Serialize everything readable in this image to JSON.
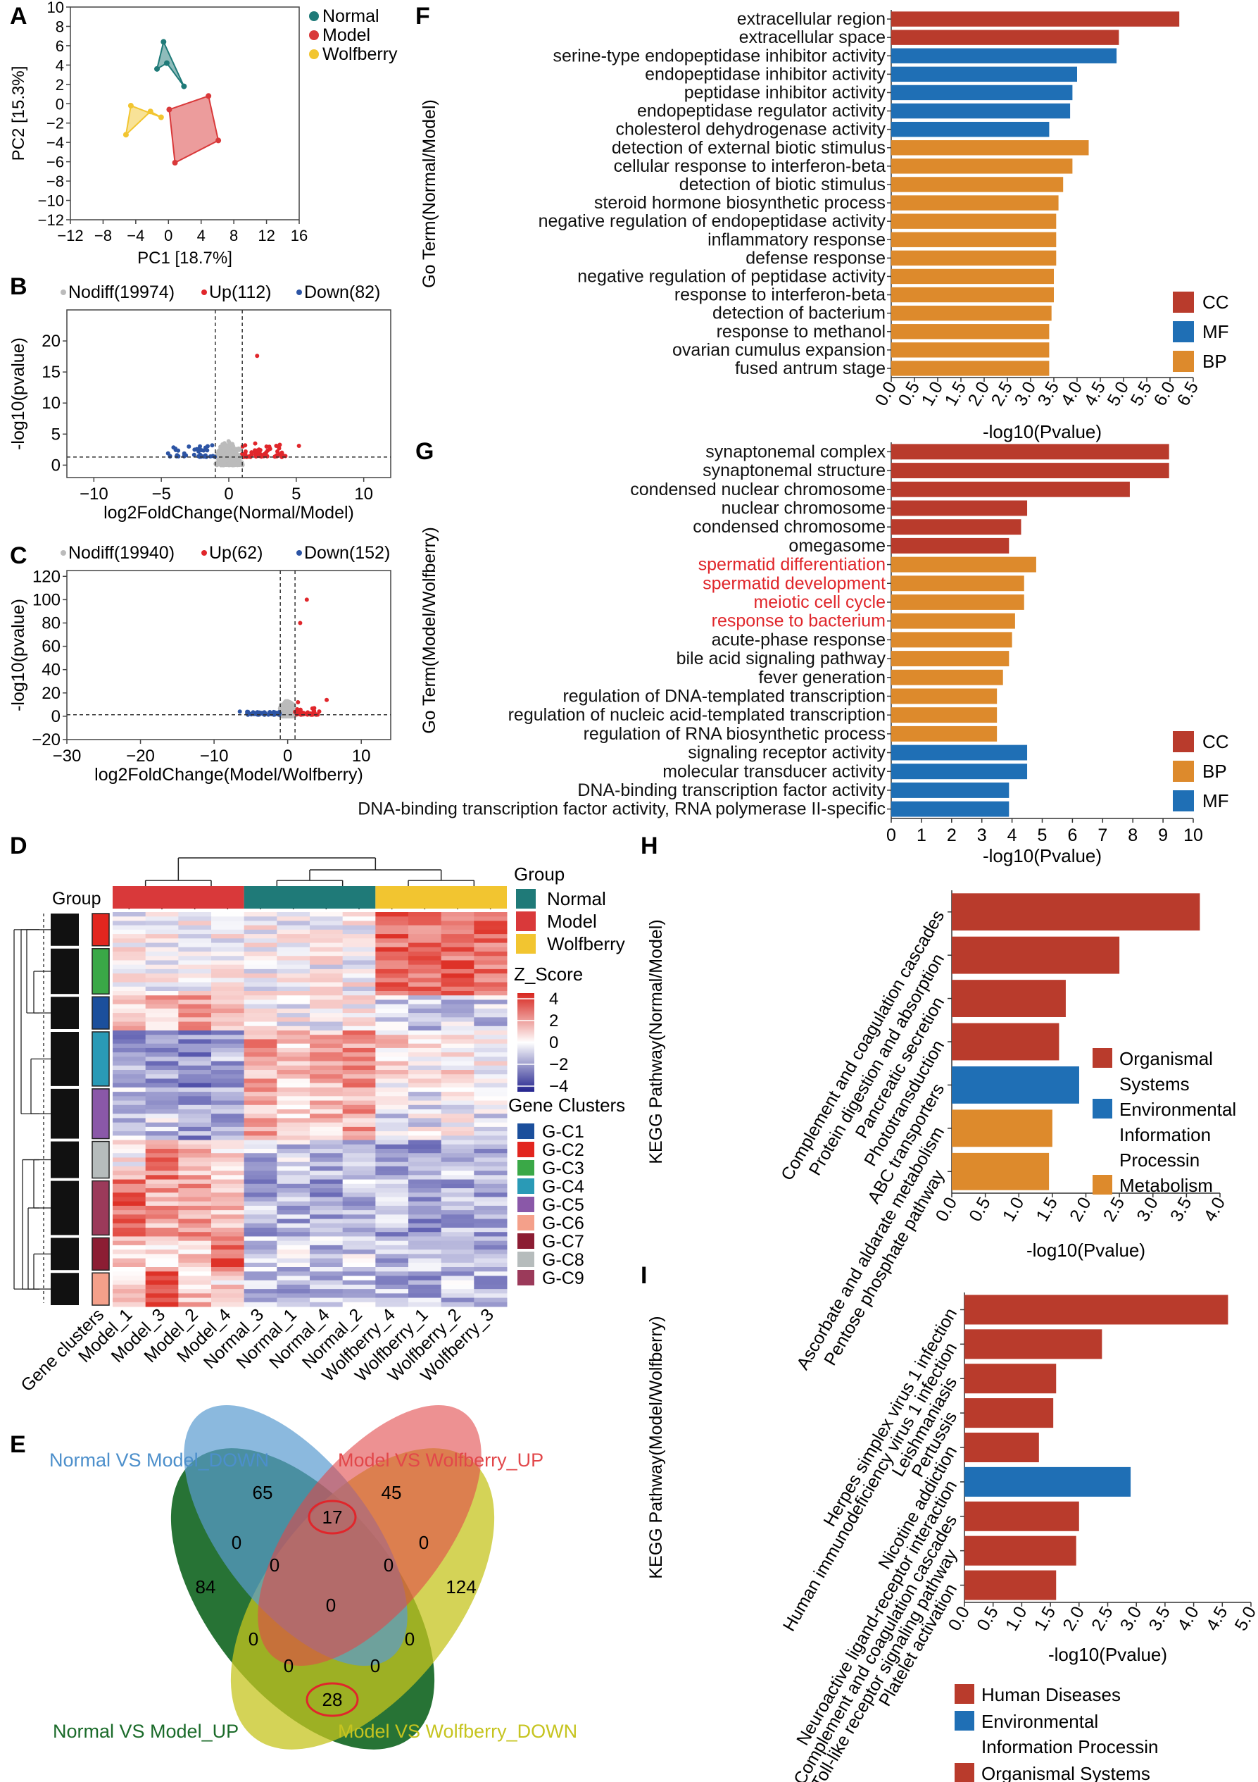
{
  "panel_labels": {
    "A": "A",
    "B": "B",
    "C": "C",
    "D": "D",
    "E": "E",
    "F": "F",
    "G": "G",
    "H": "H",
    "I": "I"
  },
  "colors": {
    "normal": "#1f7a78",
    "model": "#d9393a",
    "wolfberry": "#f2c530",
    "cc": "#b93b2c",
    "mf": "#1f6fb5",
    "bp": "#dd8a2c",
    "up": "#e0262b",
    "down": "#2c54a4",
    "nodiff": "#bbbbbb",
    "red_text": "#e0262b"
  },
  "chart_data": [
    {
      "id": "A",
      "type": "scatter",
      "xlabel": "PC1 [18.7%]",
      "ylabel": "PC2 [15.3%]",
      "xlim": [
        -12,
        16
      ],
      "ylim": [
        -12,
        10
      ],
      "xticks": [
        "−12",
        "−8",
        "−4",
        "0",
        "4",
        "8",
        "12",
        "16"
      ],
      "xtick_values": [
        -12,
        -8,
        -4,
        0,
        4,
        8,
        12,
        16
      ],
      "yticks": [
        "10",
        "8",
        "6",
        "4",
        "2",
        "0",
        "−2",
        "−4",
        "−6",
        "−8",
        "−10",
        "−12"
      ],
      "ytick_values": [
        10,
        8,
        6,
        4,
        2,
        0,
        -2,
        -4,
        -6,
        -8,
        -10,
        -12
      ],
      "legend": [
        "Normal",
        "Model",
        "Wolfberry"
      ],
      "series": [
        {
          "name": "Normal",
          "color": "#1f7a78",
          "points": [
            [
              -0.6,
              6.4
            ],
            [
              -1.4,
              3.6
            ],
            [
              -0.2,
              4.2
            ],
            [
              1.9,
              1.8
            ]
          ]
        },
        {
          "name": "Model",
          "color": "#d9393a",
          "points": [
            [
              0.1,
              -0.6
            ],
            [
              4.9,
              0.8
            ],
            [
              6.1,
              -3.8
            ],
            [
              0.8,
              -6.1
            ]
          ]
        },
        {
          "name": "Wolfberry",
          "color": "#f2c530",
          "points": [
            [
              -4.6,
              -0.2
            ],
            [
              -5.2,
              -3.2
            ],
            [
              -2.2,
              -0.8
            ],
            [
              -0.9,
              -1.4
            ]
          ]
        }
      ]
    },
    {
      "id": "B",
      "type": "scatter",
      "xlabel": "log2FoldChange(Normal/Model)",
      "ylabel": "-log10(pvalue)",
      "xlim": [
        -12,
        12
      ],
      "ylim": [
        -2,
        25
      ],
      "xticks": [
        "−10",
        "−5",
        "0",
        "5",
        "10"
      ],
      "xtick_values": [
        -10,
        -5,
        0,
        5,
        10
      ],
      "yticks": [
        "20",
        "15",
        "10",
        "5",
        "0"
      ],
      "ytick_values": [
        20,
        15,
        10,
        5,
        0
      ],
      "legend": [
        "Nodiff(19974)",
        "Up(112)",
        "Down(82)"
      ],
      "vlines": [
        -1,
        1
      ],
      "hline": 1.3,
      "highlights": [
        [
          2.1,
          17.6
        ],
        [
          5.2,
          3.1
        ],
        [
          3.6,
          2.2
        ],
        [
          -4.5,
          1.9
        ]
      ]
    },
    {
      "id": "C",
      "type": "scatter",
      "xlabel": "log2FoldChange(Model/Wolfberry)",
      "ylabel": "-log10(pvalue)",
      "xlim": [
        -30,
        14
      ],
      "ylim": [
        -20,
        125
      ],
      "xticks": [
        "−30",
        "−20",
        "−10",
        "0",
        "10"
      ],
      "xtick_values": [
        -30,
        -20,
        -10,
        0,
        10
      ],
      "yticks": [
        "120",
        "100",
        "80",
        "60",
        "40",
        "20",
        "0",
        "−20"
      ],
      "ytick_values": [
        120,
        100,
        80,
        60,
        40,
        20,
        0,
        -20
      ],
      "legend": [
        "Nodiff(19940)",
        "Up(62)",
        "Down(152)"
      ],
      "vlines": [
        -1,
        1
      ],
      "hline": 1.3,
      "highlights": [
        [
          2.6,
          100
        ],
        [
          1.7,
          80
        ],
        [
          5.3,
          14
        ],
        [
          1.4,
          12
        ],
        [
          -6.5,
          4
        ]
      ]
    },
    {
      "id": "D",
      "type": "heatmap",
      "legend_group_title": "Group",
      "legend_groups": [
        "Normal",
        "Model",
        "Wolfberry"
      ],
      "zscore_title": "Z_Score",
      "zscore_ticks": [
        "4",
        "2",
        "0",
        "−2",
        "−4"
      ],
      "clusters_title": "Gene Clusters",
      "clusters": [
        "G-C1",
        "G-C2",
        "G-C3",
        "G-C4",
        "G-C5",
        "G-C6",
        "G-C7",
        "G-C8",
        "G-C9"
      ],
      "group_label": "Group",
      "columns": [
        "Gene clusters",
        "Model_1",
        "Model_3",
        "Model_2",
        "Model_4",
        "Normal_3",
        "Normal_1",
        "Normal_4",
        "Normal_2",
        "Wolfberry_4",
        "Wolfberry_1",
        "Wolfberry_2",
        "Wolfberry_3"
      ]
    },
    {
      "id": "E",
      "type": "venn",
      "sets": [
        "Normal VS Model_DOWN",
        "Model VS Wolfberry_UP",
        "Normal VS Model_UP",
        "Model VS Wolfberry_DOWN"
      ],
      "counts": [
        "65",
        "45",
        "84",
        "124",
        "17",
        "0",
        "0",
        "0",
        "0",
        "0",
        "0",
        "0",
        "0",
        "0",
        "28"
      ]
    },
    {
      "id": "F",
      "type": "bar",
      "ylabel": "Go Term(Normal/Model)",
      "xlabel": "-log10(Pvalue)",
      "xlim": [
        0,
        6.5
      ],
      "xticks": [
        "0.0",
        "0.5",
        "1.0",
        "1.5",
        "2.0",
        "2.5",
        "3.0",
        "3.5",
        "4.0",
        "4.5",
        "5.0",
        "5.5",
        "6.0",
        "6.5"
      ],
      "categories": [
        "extracellular region",
        "extracellular space",
        "serine-type endopeptidase inhibitor activity",
        "endopeptidase inhibitor activity",
        "peptidase inhibitor activity",
        "endopeptidase regulator activity",
        "cholesterol dehydrogenase activity",
        "detection of external biotic stimulus",
        "cellular response to interferon-beta",
        "detection of biotic stimulus",
        "steroid hormone biosynthetic process",
        "negative regulation of endopeptidase activity",
        "inflammatory response",
        "defense response",
        "negative regulation of peptidase activity",
        "response to interferon-beta",
        "detection of bacterium",
        "response to methanol",
        "ovarian cumulus expansion",
        "fused antrum stage"
      ],
      "values": [
        6.2,
        4.9,
        4.85,
        4.0,
        3.9,
        3.85,
        3.4,
        4.25,
        3.9,
        3.7,
        3.6,
        3.55,
        3.55,
        3.55,
        3.5,
        3.5,
        3.45,
        3.4,
        3.4,
        3.4
      ],
      "groups": [
        "CC",
        "CC",
        "MF",
        "MF",
        "MF",
        "MF",
        "MF",
        "BP",
        "BP",
        "BP",
        "BP",
        "BP",
        "BP",
        "BP",
        "BP",
        "BP",
        "BP",
        "BP",
        "BP",
        "BP"
      ],
      "legend": [
        "CC",
        "MF",
        "BP"
      ]
    },
    {
      "id": "G",
      "type": "bar",
      "ylabel": "Go Term(Model/Wolfberry)",
      "xlabel": "-log10(Pvalue)",
      "xlim": [
        0,
        10
      ],
      "xticks": [
        "0",
        "1",
        "2",
        "3",
        "4",
        "5",
        "6",
        "7",
        "8",
        "9",
        "10"
      ],
      "categories": [
        "synaptonemal complex",
        "synaptonemal structure",
        "condensed nuclear chromosome",
        "nuclear chromosome",
        "condensed chromosome",
        "omegasome",
        "spermatid differentiation",
        "spermatid development",
        "meiotic cell cycle",
        "response to bacterium",
        "acute-phase response",
        "bile acid signaling pathway",
        "fever generation",
        "regulation of DNA-templated transcription",
        "regulation of nucleic acid-templated transcription",
        "regulation of RNA biosynthetic process",
        "signaling receptor activity",
        "molecular transducer activity",
        "DNA-binding transcription factor activity",
        "DNA-binding transcription factor activity, RNA polymerase II-specific"
      ],
      "values": [
        9.2,
        9.2,
        7.9,
        4.5,
        4.3,
        3.9,
        4.8,
        4.4,
        4.4,
        4.1,
        4.0,
        3.9,
        3.7,
        3.5,
        3.5,
        3.5,
        4.5,
        4.5,
        3.9,
        3.9
      ],
      "groups": [
        "CC",
        "CC",
        "CC",
        "CC",
        "CC",
        "CC",
        "BP",
        "BP",
        "BP",
        "BP",
        "BP",
        "BP",
        "BP",
        "BP",
        "BP",
        "BP",
        "MF",
        "MF",
        "MF",
        "MF"
      ],
      "highlight_labels": [
        "spermatid differentiation",
        "spermatid development",
        "meiotic cell cycle",
        "response to bacterium"
      ],
      "legend": [
        "CC",
        "BP",
        "MF"
      ]
    },
    {
      "id": "H",
      "type": "bar",
      "ylabel": "KEGG Pathway(Normal/Model)",
      "xlabel": "-log10(Pvalue)",
      "xlim": [
        0,
        4.0
      ],
      "xticks": [
        "0.0",
        "0.5",
        "1.0",
        "1.5",
        "2.0",
        "2.5",
        "3.0",
        "3.5",
        "4.0"
      ],
      "categories": [
        "Complement and coagulation cascades",
        "Protein digestion and absorption",
        "Pancreatic secretion",
        "Phototransduction",
        "ABC transporters",
        "Ascorbate and aldarate metabolism",
        "Pentose phosphate pathway"
      ],
      "values": [
        3.7,
        2.5,
        1.7,
        1.6,
        1.9,
        1.5,
        1.45
      ],
      "groups": [
        "OS",
        "OS",
        "OS",
        "OS",
        "EIP",
        "MET",
        "MET"
      ],
      "legend": [
        "Organismal Systems",
        "Environmental Information Processin",
        "Metabolism"
      ],
      "legend_lines": [
        [
          "Organismal",
          "Systems"
        ],
        [
          "Environmental",
          "Information",
          "Processin"
        ],
        [
          "Metabolism"
        ]
      ]
    },
    {
      "id": "I",
      "type": "bar",
      "ylabel": "KEGG Pathway(Model/Wolfberry)",
      "xlabel": "-log10(Pvalue)",
      "xlim": [
        0,
        5.0
      ],
      "xticks": [
        "0.0",
        "0.5",
        "1.0",
        "1.5",
        "2.0",
        "2.5",
        "3.0",
        "3.5",
        "4.0",
        "4.5",
        "5.0"
      ],
      "categories": [
        "Herpes simplex virus 1 infection",
        "Human immunodeficiency virus 1 infection",
        "Leishmaniasis",
        "Pertussis",
        "Nicotine addiction",
        "Neuroactive ligand-receptor interaction",
        "Complement and coagulation cascades",
        "Toll-like receptor signaling pathway",
        "Platelet activation"
      ],
      "values": [
        4.6,
        2.4,
        1.6,
        1.55,
        1.3,
        2.9,
        2.0,
        1.95,
        1.6
      ],
      "groups": [
        "HD",
        "HD",
        "HD",
        "HD",
        "HD",
        "EIP",
        "OS",
        "OS",
        "OS"
      ],
      "legend": [
        "Human Diseases",
        "Environmental Information Processin",
        "Organismal Systems"
      ],
      "legend_lines": [
        [
          "Human Diseases"
        ],
        [
          "Environmental",
          "Information Processin"
        ],
        [
          "Organismal Systems"
        ]
      ]
    }
  ]
}
